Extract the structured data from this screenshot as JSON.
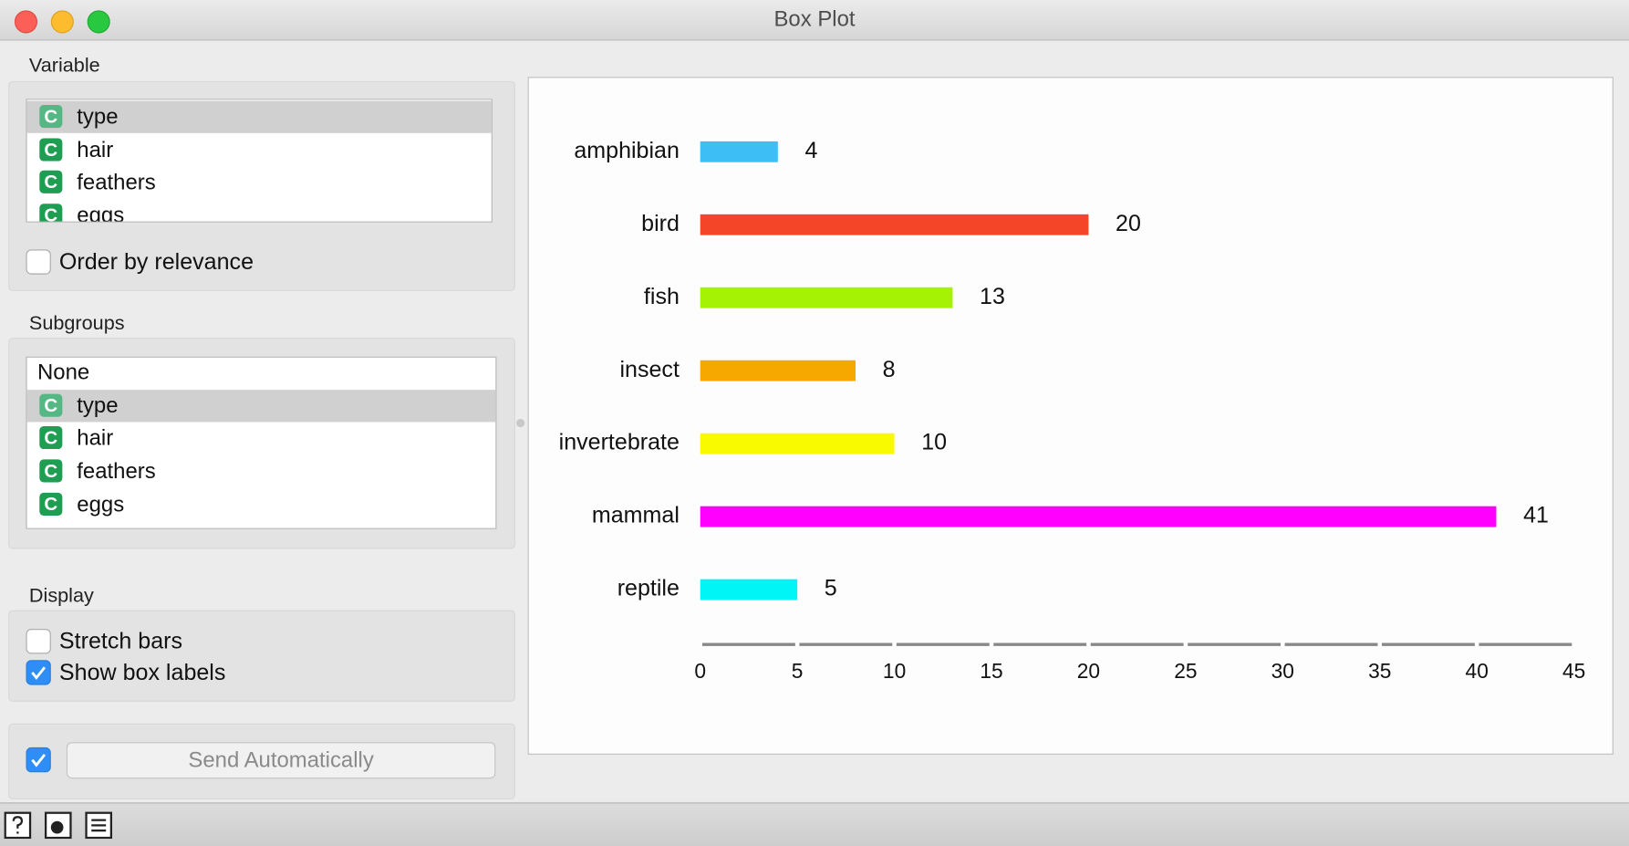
{
  "window": {
    "title": "Box Plot"
  },
  "item_icon": "C",
  "variable": {
    "label": "Variable",
    "items": [
      "type",
      "hair",
      "feathers",
      "eggs"
    ],
    "order_by_relevance": "Order by relevance"
  },
  "subgroups": {
    "label": "Subgroups",
    "items": [
      "None",
      "type",
      "hair",
      "feathers",
      "eggs"
    ]
  },
  "display": {
    "label": "Display",
    "stretch_bars": "Stretch bars",
    "show_box_labels": "Show box labels"
  },
  "send": {
    "label": "Send Automatically"
  },
  "chart_data": {
    "type": "bar",
    "orientation": "horizontal",
    "categories": [
      "amphibian",
      "bird",
      "fish",
      "insect",
      "invertebrate",
      "mammal",
      "reptile"
    ],
    "values": [
      4,
      20,
      13,
      8,
      10,
      41,
      5
    ],
    "colors": [
      "#3dbef5",
      "#f44528",
      "#a6f205",
      "#f7a800",
      "#f9f900",
      "#ff00ff",
      "#00f6f6"
    ],
    "xlim": [
      0,
      45
    ],
    "xticks": [
      0,
      5,
      10,
      15,
      20,
      25,
      30,
      35,
      40,
      45
    ]
  }
}
